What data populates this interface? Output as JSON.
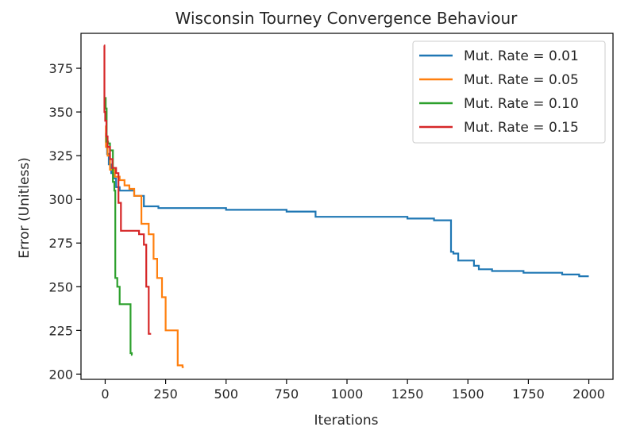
{
  "chart_data": {
    "type": "line",
    "title": "Wisconsin Tourney Convergence Behaviour",
    "xlabel": "Iterations",
    "ylabel": "Error (Unitless)",
    "xlim": [
      -100,
      2100
    ],
    "ylim": [
      197,
      395
    ],
    "xticks": [
      0,
      250,
      500,
      750,
      1000,
      1250,
      1500,
      1750,
      2000
    ],
    "yticks": [
      200,
      225,
      250,
      275,
      300,
      325,
      350,
      375
    ],
    "xtick_labels": [
      "0",
      "250",
      "500",
      "750",
      "1000",
      "1250",
      "1500",
      "1750",
      "2000"
    ],
    "ytick_labels": [
      "200",
      "225",
      "250",
      "275",
      "300",
      "325",
      "350",
      "375"
    ],
    "grid": false,
    "legend_position": "top-right",
    "series": [
      {
        "name": "Mut. Rate = 0.01",
        "color": "#1f77b4",
        "x": [
          0,
          3,
          3,
          8,
          8,
          15,
          15,
          25,
          25,
          35,
          35,
          45,
          45,
          60,
          60,
          120,
          120,
          160,
          160,
          220,
          220,
          500,
          500,
          750,
          750,
          870,
          870,
          1100,
          1100,
          1250,
          1250,
          1360,
          1360,
          1430,
          1430,
          1440,
          1440,
          1460,
          1460,
          1525,
          1525,
          1545,
          1545,
          1600,
          1600,
          1730,
          1730,
          1890,
          1890,
          1960,
          1960,
          2000
        ],
        "y": [
          338,
          338,
          333,
          333,
          326,
          326,
          320,
          320,
          315,
          315,
          312,
          312,
          307,
          307,
          305,
          305,
          302,
          302,
          296,
          296,
          295,
          295,
          294,
          294,
          293,
          293,
          290,
          290,
          290,
          290,
          289,
          289,
          288,
          288,
          270,
          270,
          269,
          269,
          265,
          265,
          262,
          262,
          260,
          260,
          259,
          259,
          258,
          258,
          257,
          257,
          256,
          256
        ]
      },
      {
        "name": "Mut. Rate = 0.05",
        "color": "#ff7f0e",
        "x": [
          0,
          3,
          3,
          10,
          10,
          20,
          20,
          40,
          40,
          60,
          60,
          80,
          80,
          100,
          100,
          120,
          120,
          150,
          150,
          180,
          180,
          200,
          200,
          215,
          215,
          235,
          235,
          250,
          250,
          300,
          300,
          320,
          320,
          325
        ],
        "y": [
          342,
          342,
          330,
          330,
          325,
          325,
          317,
          317,
          313,
          313,
          311,
          311,
          308,
          308,
          306,
          306,
          302,
          302,
          286,
          286,
          280,
          280,
          266,
          266,
          255,
          255,
          244,
          244,
          225,
          225,
          205,
          205,
          204,
          204
        ]
      },
      {
        "name": "Mut. Rate = 0.10",
        "color": "#2ca02c",
        "x": [
          0,
          2,
          2,
          6,
          6,
          12,
          12,
          20,
          20,
          32,
          32,
          38,
          38,
          42,
          42,
          50,
          50,
          60,
          60,
          105,
          105,
          110,
          110,
          112
        ],
        "y": [
          358,
          358,
          352,
          352,
          333,
          333,
          332,
          332,
          328,
          328,
          310,
          310,
          305,
          305,
          255,
          255,
          250,
          250,
          240,
          240,
          212,
          212,
          211,
          211
        ]
      },
      {
        "name": "Mut. Rate = 0.15",
        "color": "#d62728",
        "x": [
          -5,
          -3,
          -3,
          0,
          0,
          5,
          5,
          10,
          10,
          20,
          20,
          30,
          30,
          45,
          45,
          55,
          55,
          65,
          65,
          140,
          140,
          160,
          160,
          170,
          170,
          180,
          180,
          190
        ],
        "y": [
          388,
          388,
          350,
          350,
          345,
          345,
          336,
          336,
          330,
          330,
          323,
          323,
          318,
          318,
          315,
          315,
          298,
          298,
          282,
          282,
          280,
          280,
          274,
          274,
          250,
          250,
          223,
          223
        ]
      }
    ]
  }
}
